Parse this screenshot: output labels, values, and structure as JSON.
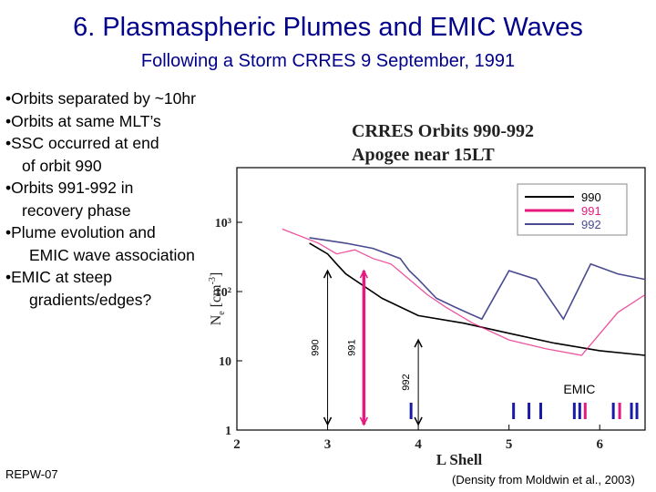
{
  "slide": {
    "title": "6. Plasmaspheric Plumes and EMIC Waves",
    "subtitle": "Following a Storm CRRES 9 September, 1991",
    "bullets": [
      "•Orbits separated by ~10hr",
      "•Orbits at same MLT’s",
      "•SSC occurred at end",
      "of orbit 990",
      "•Orbits 991-992 in",
      "recovery phase",
      "•Plume evolution and",
      "EMIC wave association",
      "•EMIC at steep",
      "gradients/edges?"
    ],
    "footer_left": "REPW-07",
    "credit": "(Density from Moldwin et al., 2003)"
  },
  "chart_data": {
    "type": "line",
    "title": "CRRES Orbits 990-992",
    "subtitle": "Apogee near 15LT",
    "xlabel": "L Shell",
    "ylabel": "Ne [cm-3]",
    "xlim": [
      2,
      6.5
    ],
    "ylim": [
      1,
      1000
    ],
    "yscale": "log",
    "x_ticks": [
      "2",
      "3",
      "4",
      "5",
      "6"
    ],
    "y_ticks": [
      "1",
      "10",
      "10²",
      "10³"
    ],
    "legend_position": "top-right",
    "series": [
      {
        "name": "990",
        "color": "#000000",
        "x": [
          2.8,
          3.0,
          3.1,
          3.2,
          3.4,
          3.6,
          3.8,
          4.0,
          4.5,
          5.0,
          5.5,
          6.0,
          6.5
        ],
        "y": [
          500,
          350,
          250,
          180,
          120,
          80,
          60,
          45,
          35,
          25,
          18,
          14,
          12
        ]
      },
      {
        "name": "991",
        "color": "#e5197f",
        "x": [
          2.5,
          2.9,
          3.1,
          3.3,
          3.5,
          3.7,
          3.9,
          4.1,
          4.3,
          4.6,
          5.0,
          5.4,
          5.8,
          6.2,
          6.5
        ],
        "y": [
          800,
          500,
          350,
          400,
          300,
          250,
          150,
          90,
          60,
          35,
          20,
          15,
          12,
          50,
          90
        ]
      },
      {
        "name": "992",
        "color": "#4a4a8f",
        "x": [
          2.8,
          3.2,
          3.5,
          3.8,
          3.9,
          4.0,
          4.2,
          4.4,
          4.7,
          5.0,
          5.3,
          5.6,
          5.9,
          6.2,
          6.5
        ],
        "y": [
          600,
          500,
          420,
          300,
          200,
          150,
          80,
          60,
          40,
          200,
          150,
          40,
          250,
          180,
          150
        ]
      }
    ],
    "arrows": [
      {
        "label": "990",
        "x": 3.0,
        "y_range": [
          1,
          200
        ],
        "color": "#000000"
      },
      {
        "label": "991",
        "x": 3.4,
        "y_range": [
          1,
          200
        ],
        "color": "#e5197f"
      },
      {
        "label": "992",
        "x": 4.0,
        "y_range": [
          1,
          20
        ],
        "color": "#000000"
      }
    ],
    "emic_label": "EMIC",
    "emic_marks": [
      {
        "x": 3.92,
        "color": "#1a1aa8"
      },
      {
        "x": 5.05,
        "color": "#1a1aa8"
      },
      {
        "x": 5.22,
        "color": "#1a1aa8"
      },
      {
        "x": 5.35,
        "color": "#1a1aa8"
      },
      {
        "x": 5.72,
        "color": "#1a1aa8"
      },
      {
        "x": 5.78,
        "color": "#1a1aa8"
      },
      {
        "x": 5.84,
        "color": "#e5197f"
      },
      {
        "x": 6.15,
        "color": "#1a1aa8"
      },
      {
        "x": 6.22,
        "color": "#e5197f"
      },
      {
        "x": 6.35,
        "color": "#1a1aa8"
      },
      {
        "x": 6.41,
        "color": "#1a1aa8"
      }
    ]
  }
}
